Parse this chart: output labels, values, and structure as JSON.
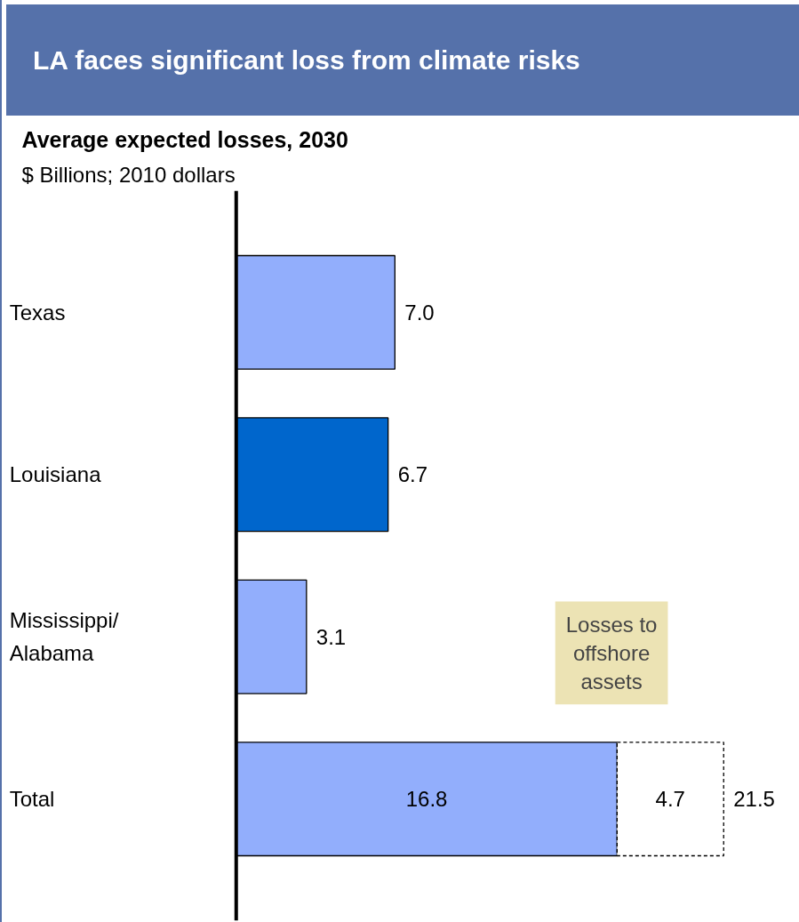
{
  "chart_data": {
    "type": "bar",
    "orientation": "horizontal",
    "stacked": true,
    "title": "LA faces significant loss from climate risks",
    "subtitle": "Average expected losses, 2030",
    "categories": [
      "Texas",
      "Louisiana",
      "Mississippi/\nAlabama",
      "Total"
    ],
    "series": [
      {
        "colors": [
          "#92aefc",
          "#0066cc",
          "#92aefc",
          "#92aefc"
        ],
        "values": [
          7.0,
          6.7,
          3.1,
          16.8
        ],
        "value_labels": [
          "7.0",
          "6.7",
          "3.1",
          "16.8"
        ]
      },
      {
        "color": "#ffffff",
        "line_style": "dashed",
        "values": [
          null,
          null,
          null,
          4.7
        ],
        "value_labels": [
          null,
          null,
          null,
          "4.7"
        ]
      }
    ],
    "totals": [
      null,
      null,
      null,
      "21.5"
    ],
    "annotations": [
      "$ Billions; 2010 dollars",
      "Losses to\noffshore\nassets"
    ]
  }
}
